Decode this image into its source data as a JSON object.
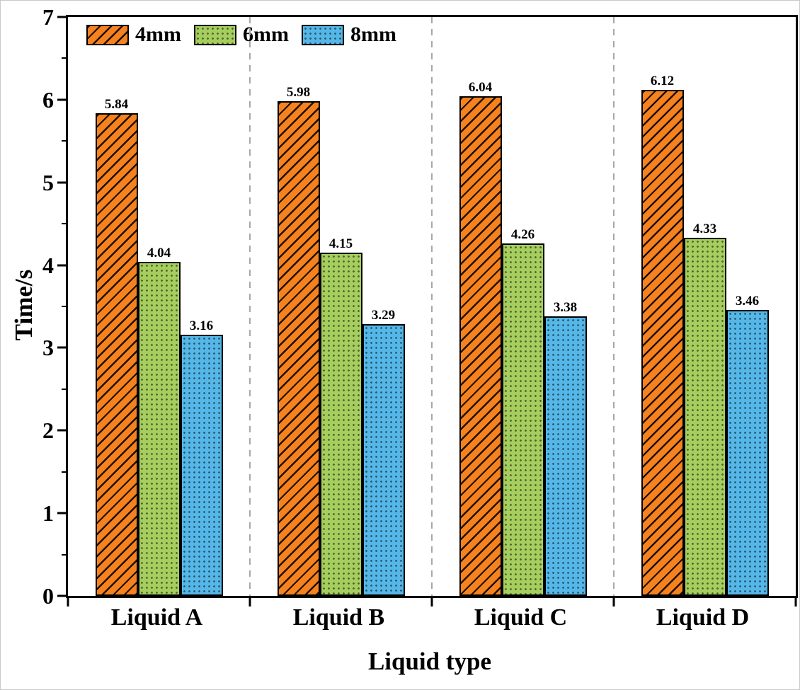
{
  "chart_data": {
    "type": "bar",
    "title": "",
    "xlabel": "Liquid type",
    "ylabel": "Time/s",
    "categories": [
      "Liquid A",
      "Liquid B",
      "Liquid C",
      "Liquid D"
    ],
    "series": [
      {
        "name": "4mm",
        "color": "#f5821f",
        "pattern": "diagonal-hatch",
        "values": [
          5.84,
          5.98,
          6.04,
          6.12
        ]
      },
      {
        "name": "6mm",
        "color": "#a5ce5e",
        "pattern": "dots",
        "values": [
          4.04,
          4.15,
          4.26,
          4.33
        ]
      },
      {
        "name": "8mm",
        "color": "#55b7e8",
        "pattern": "dots",
        "values": [
          3.16,
          3.29,
          3.38,
          3.46
        ]
      }
    ],
    "ylim": [
      0,
      7
    ],
    "yticks": [
      0,
      1,
      2,
      3,
      4,
      5,
      6,
      7
    ],
    "legend_position": "top-left-inside",
    "legend_entries": [
      "4mm",
      "6mm",
      "8mm"
    ],
    "grid": "dashed-vertical-separators",
    "bar_value_labels": true,
    "value_label_decimals": 2
  }
}
